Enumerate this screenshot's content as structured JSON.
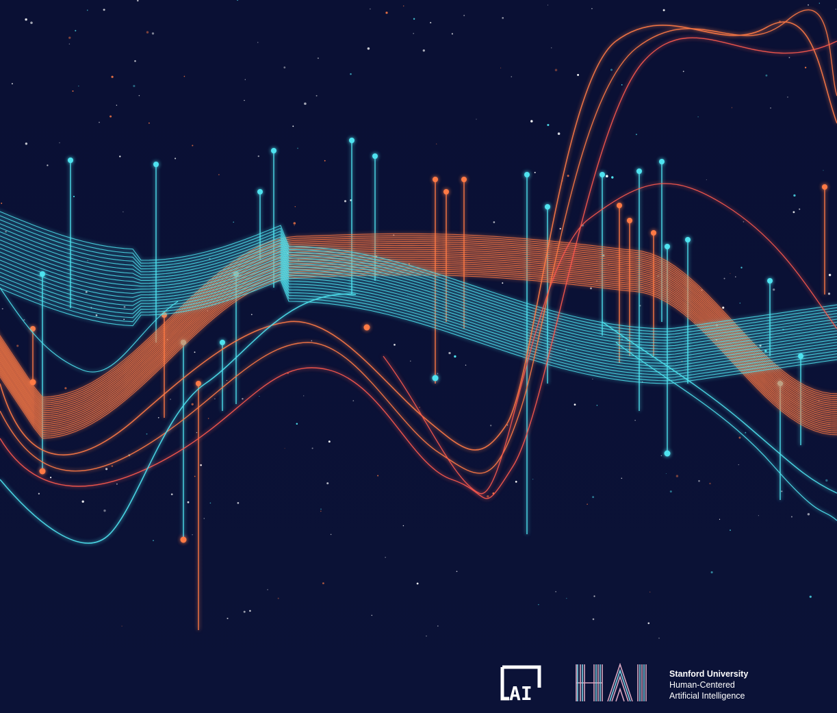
{
  "branding": {
    "ai_mark_text": "AI",
    "hai_wordmark": "HAI",
    "org_line1": "Stanford University",
    "org_line2": "Human-Centered",
    "org_line3": "Artificial Intelligence"
  },
  "colors": {
    "background": "#0b1237",
    "cyan": "#4fe3f0",
    "orange": "#ff7a45",
    "coral": "#ff5a4e",
    "white": "#ffffff"
  },
  "icons": [
    "ai-logo-icon",
    "hai-wordmark-icon"
  ]
}
